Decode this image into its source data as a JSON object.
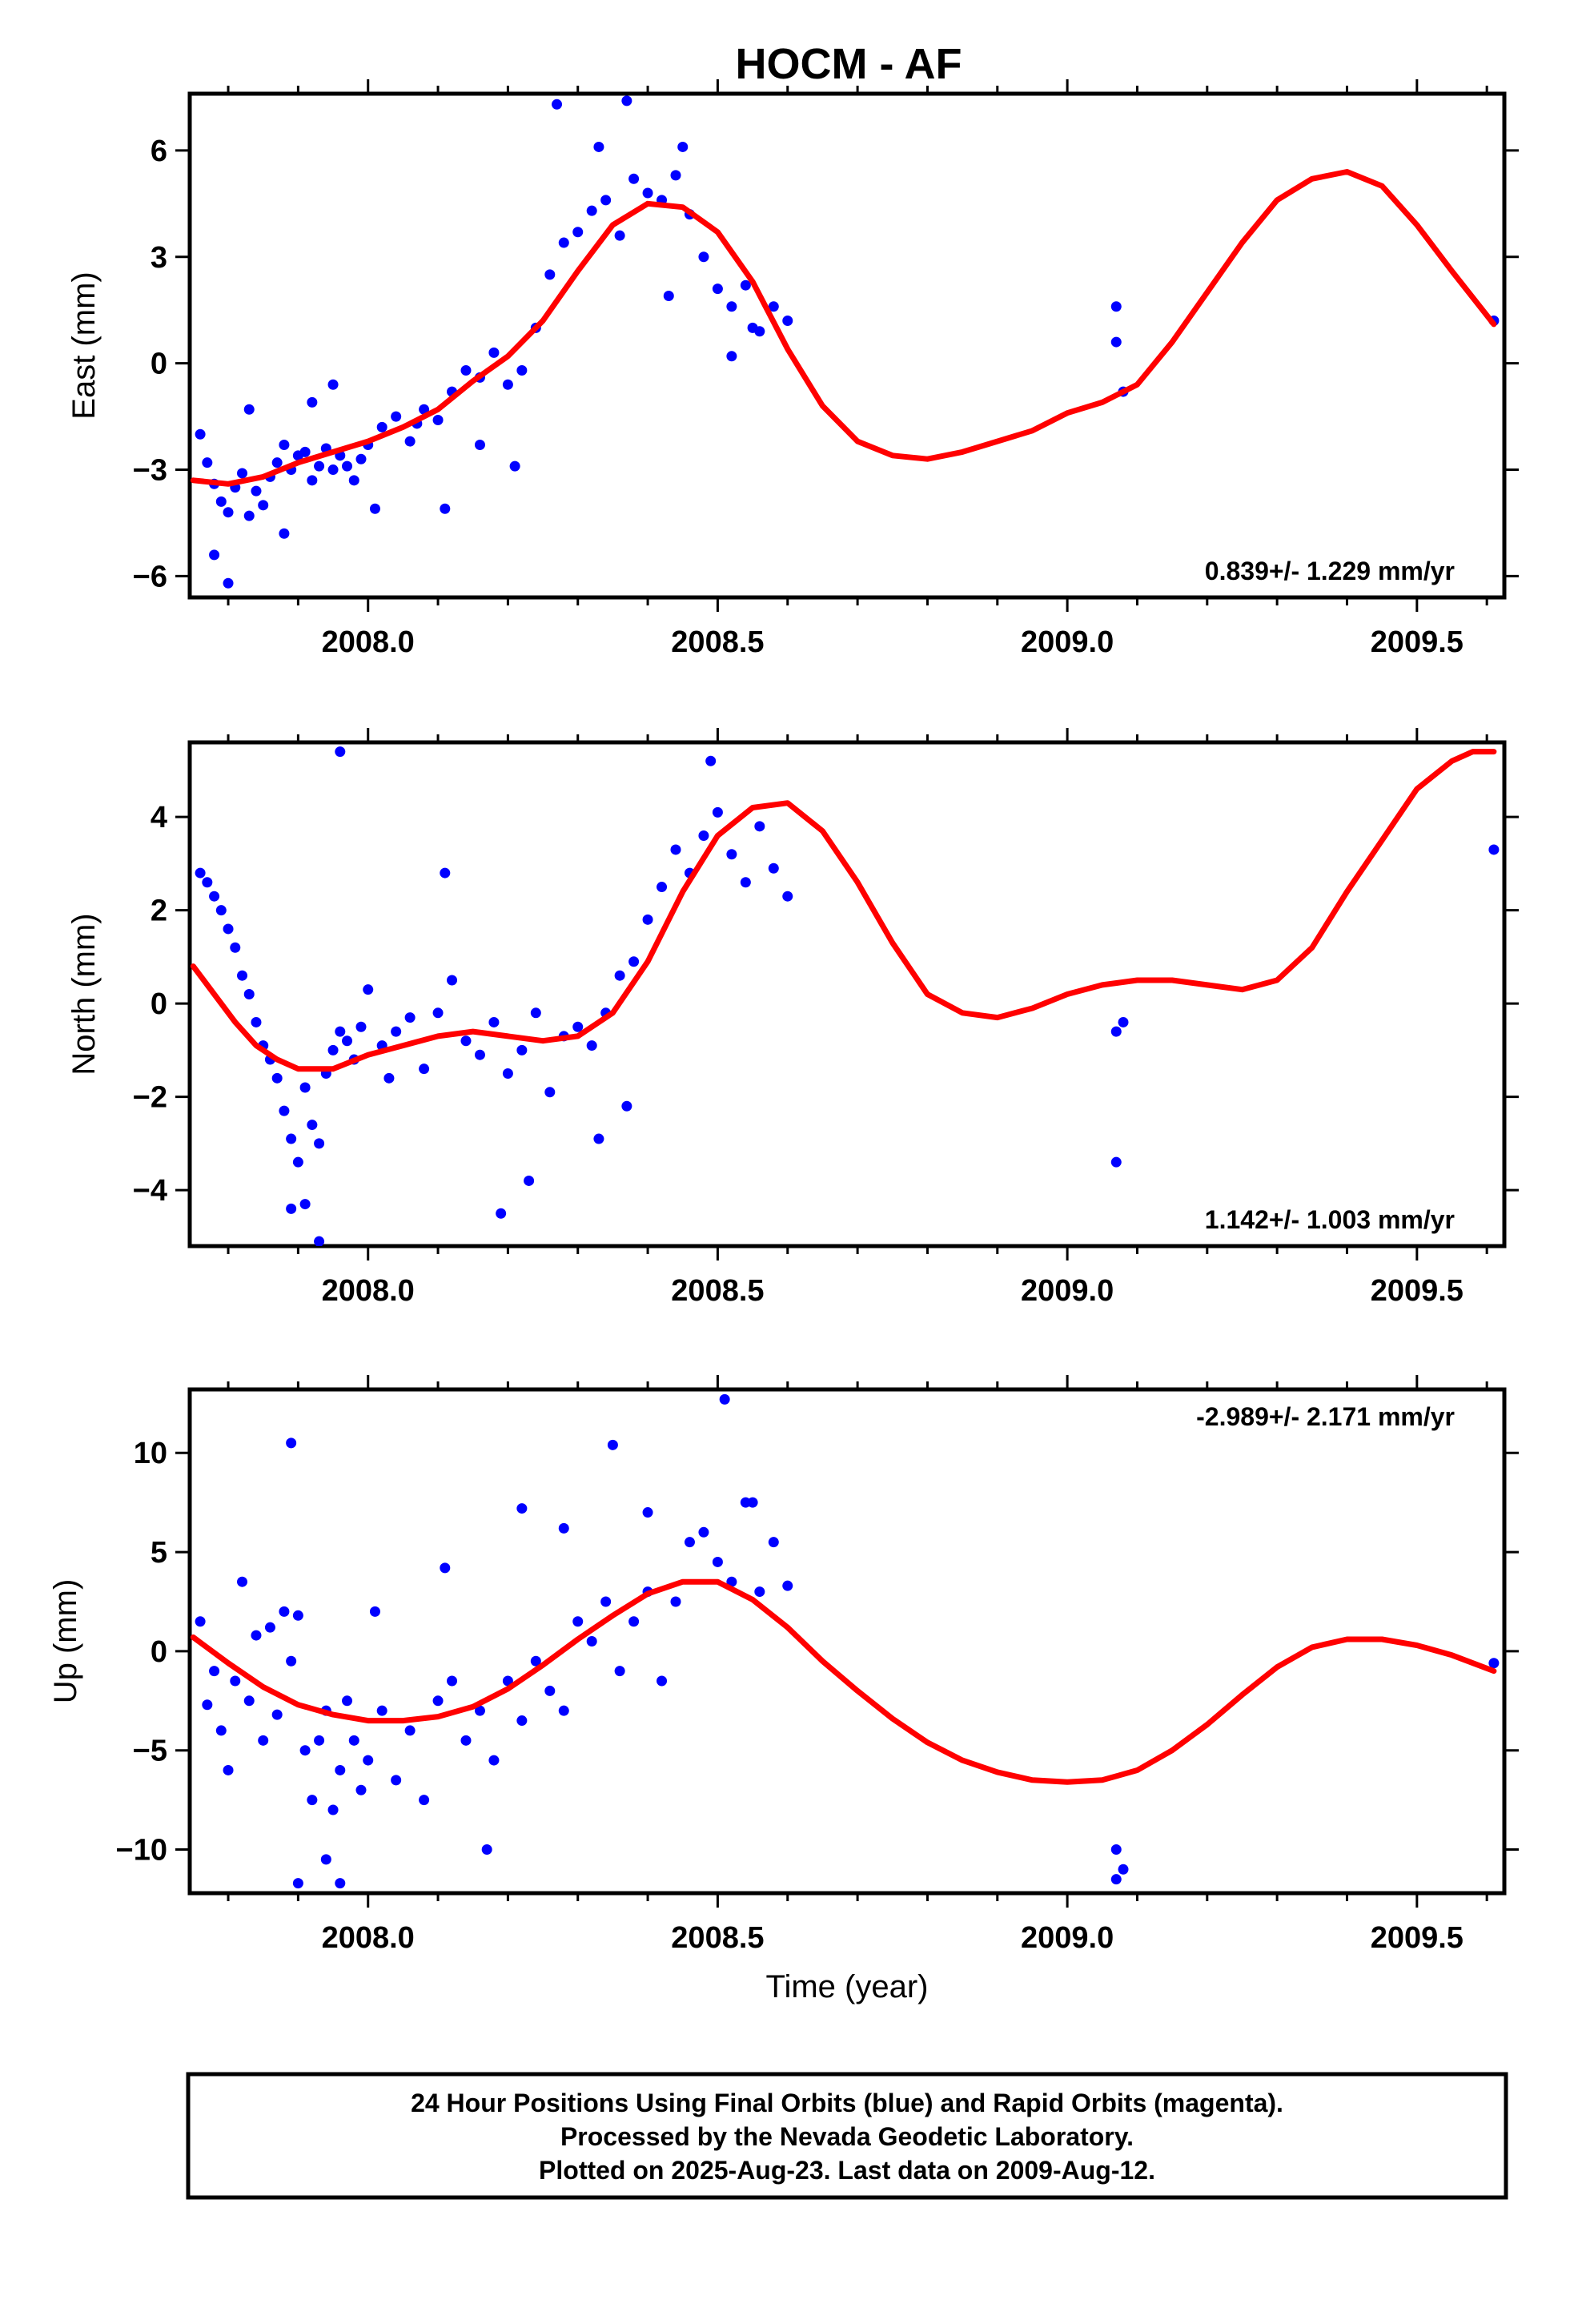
{
  "page": {
    "title": "HOCM - AF",
    "footer_lines": [
      "24 Hour Positions Using Final Orbits (blue) and Rapid Orbits (magenta).",
      "Processed by the Nevada Geodetic Laboratory.",
      "Plotted on 2025-Aug-23. Last data on 2009-Aug-12."
    ]
  },
  "colors": {
    "points": "#0000ff",
    "model": "#ff0000",
    "axes": "#000000"
  },
  "chart_data": [
    {
      "type": "scatter",
      "title": "HOCM - AF",
      "xlabel": "",
      "ylabel": "East (mm)",
      "xlim": [
        2007.745,
        2009.625
      ],
      "ylim": [
        -6.6,
        7.6
      ],
      "xticks": [
        2008.0,
        2008.5,
        2009.0,
        2009.5
      ],
      "xtick_labels": [
        "2008.0",
        "2008.5",
        "2009.0",
        "2009.5"
      ],
      "yticks": [
        -6,
        -3,
        0,
        3,
        6
      ],
      "ytick_labels": [
        "−6",
        "−3",
        "0",
        "3",
        "6"
      ],
      "rate_label": "0.839+/- 1.229 mm/yr",
      "rate_position": "bottom-right",
      "grid": false,
      "series": [
        {
          "kind": "points",
          "x": [
            2007.76,
            2007.77,
            2007.78,
            2007.79,
            2007.8,
            2007.81,
            2007.82,
            2007.83,
            2007.84,
            2007.85,
            2007.86,
            2007.87,
            2007.88,
            2007.89,
            2007.9,
            2007.91,
            2007.92,
            2007.93,
            2007.94,
            2007.95,
            2007.96,
            2007.97,
            2007.98,
            2007.99,
            2008.0,
            2008.02,
            2008.04,
            2008.06,
            2008.08,
            2008.1,
            2008.12,
            2008.14,
            2008.16,
            2008.18,
            2008.2,
            2008.22,
            2008.24,
            2008.26,
            2008.28,
            2008.3,
            2008.32,
            2008.34,
            2008.36,
            2008.38,
            2008.4,
            2008.42,
            2008.44,
            2008.46,
            2008.48,
            2008.5,
            2008.52,
            2008.54,
            2008.56,
            2008.58,
            2008.6,
            2007.78,
            2007.8,
            2007.83,
            2007.88,
            2007.92,
            2007.95,
            2008.01,
            2008.07,
            2008.11,
            2008.16,
            2008.21,
            2008.27,
            2008.33,
            2008.37,
            2008.43,
            2008.45,
            2008.52,
            2008.55,
            2009.07,
            2009.07,
            2009.08,
            2009.61
          ],
          "y": [
            -2.0,
            -2.8,
            -3.4,
            -3.9,
            -4.2,
            -3.5,
            -3.1,
            -4.3,
            -3.6,
            -4.0,
            -3.2,
            -2.8,
            -2.3,
            -3.0,
            -2.6,
            -2.5,
            -3.3,
            -2.9,
            -2.4,
            -3.0,
            -2.6,
            -2.9,
            -3.3,
            -2.7,
            -2.3,
            -1.8,
            -1.5,
            -2.2,
            -1.3,
            -1.6,
            -0.8,
            -0.2,
            -0.4,
            0.3,
            -0.6,
            -0.2,
            1.0,
            2.5,
            3.4,
            3.7,
            4.3,
            4.6,
            3.6,
            5.2,
            4.8,
            4.6,
            5.3,
            4.2,
            3.0,
            2.1,
            1.6,
            2.2,
            0.9,
            1.6,
            1.2,
            -5.4,
            -6.2,
            -1.3,
            -4.8,
            -1.1,
            -0.6,
            -4.1,
            -1.7,
            -4.1,
            -2.3,
            -2.9,
            7.3,
            6.1,
            7.4,
            1.9,
            6.1,
            0.2,
            1.0,
            0.6,
            1.6,
            -0.8,
            1.2
          ]
        },
        {
          "kind": "model",
          "x": [
            2007.75,
            2007.8,
            2007.85,
            2007.9,
            2007.95,
            2008.0,
            2008.05,
            2008.1,
            2008.15,
            2008.2,
            2008.25,
            2008.3,
            2008.35,
            2008.4,
            2008.45,
            2008.5,
            2008.55,
            2008.6,
            2008.65,
            2008.7,
            2008.75,
            2008.8,
            2008.85,
            2008.9,
            2008.95,
            2009.0,
            2009.05,
            2009.1,
            2009.15,
            2009.2,
            2009.25,
            2009.3,
            2009.35,
            2009.4,
            2009.45,
            2009.5,
            2009.55,
            2009.61
          ],
          "y": [
            -3.3,
            -3.4,
            -3.2,
            -2.8,
            -2.5,
            -2.2,
            -1.8,
            -1.3,
            -0.5,
            0.2,
            1.2,
            2.6,
            3.9,
            4.5,
            4.4,
            3.7,
            2.3,
            0.4,
            -1.2,
            -2.2,
            -2.6,
            -2.7,
            -2.5,
            -2.2,
            -1.9,
            -1.4,
            -1.1,
            -0.6,
            0.6,
            2.0,
            3.4,
            4.6,
            5.2,
            5.4,
            5.0,
            3.9,
            2.6,
            1.1
          ]
        }
      ]
    },
    {
      "type": "scatter",
      "xlabel": "",
      "ylabel": "North (mm)",
      "xlim": [
        2007.745,
        2009.625
      ],
      "ylim": [
        -5.2,
        5.6
      ],
      "xticks": [
        2008.0,
        2008.5,
        2009.0,
        2009.5
      ],
      "xtick_labels": [
        "2008.0",
        "2008.5",
        "2009.0",
        "2009.5"
      ],
      "yticks": [
        -4,
        -2,
        0,
        2,
        4
      ],
      "ytick_labels": [
        "−4",
        "−2",
        "0",
        "2",
        "4"
      ],
      "rate_label": "1.142+/- 1.003 mm/yr",
      "rate_position": "bottom-right",
      "grid": false,
      "series": [
        {
          "kind": "points",
          "x": [
            2007.76,
            2007.77,
            2007.78,
            2007.79,
            2007.8,
            2007.81,
            2007.82,
            2007.83,
            2007.84,
            2007.85,
            2007.86,
            2007.87,
            2007.88,
            2007.89,
            2007.9,
            2007.91,
            2007.92,
            2007.93,
            2007.94,
            2007.95,
            2007.96,
            2007.97,
            2007.98,
            2007.99,
            2008.0,
            2008.02,
            2008.04,
            2008.06,
            2008.08,
            2008.1,
            2008.12,
            2008.14,
            2008.16,
            2008.18,
            2008.2,
            2008.22,
            2008.24,
            2008.26,
            2008.28,
            2008.3,
            2008.32,
            2008.34,
            2008.36,
            2008.38,
            2008.4,
            2008.42,
            2008.44,
            2008.46,
            2008.48,
            2008.5,
            2008.52,
            2008.54,
            2008.56,
            2008.58,
            2008.6,
            2007.89,
            2007.91,
            2007.93,
            2007.96,
            2008.03,
            2008.11,
            2008.19,
            2008.23,
            2008.33,
            2008.37,
            2008.49,
            2009.07,
            2009.07,
            2009.08,
            2009.61
          ],
          "y": [
            2.8,
            2.6,
            2.3,
            2.0,
            1.6,
            1.2,
            0.6,
            0.2,
            -0.4,
            -0.9,
            -1.2,
            -1.6,
            -2.3,
            -2.9,
            -3.4,
            -1.8,
            -2.6,
            -3.0,
            -1.5,
            -1.0,
            -0.6,
            -0.8,
            -1.2,
            -0.5,
            0.3,
            -0.9,
            -0.6,
            -0.3,
            -1.4,
            -0.2,
            0.5,
            -0.8,
            -1.1,
            -0.4,
            -1.5,
            -1.0,
            -0.2,
            -1.9,
            -0.7,
            -0.5,
            -0.9,
            -0.2,
            0.6,
            0.9,
            1.8,
            2.5,
            3.3,
            2.8,
            3.6,
            4.1,
            3.2,
            2.6,
            3.8,
            2.9,
            2.3,
            -4.4,
            -4.3,
            -5.1,
            5.4,
            -1.6,
            2.8,
            -4.5,
            -3.8,
            -2.9,
            -2.2,
            5.2,
            -3.4,
            -0.6,
            -0.4,
            3.3
          ]
        },
        {
          "kind": "model",
          "x": [
            2007.75,
            2007.78,
            2007.81,
            2007.84,
            2007.87,
            2007.9,
            2007.95,
            2008.0,
            2008.05,
            2008.1,
            2008.15,
            2008.2,
            2008.25,
            2008.3,
            2008.35,
            2008.4,
            2008.45,
            2008.5,
            2008.55,
            2008.6,
            2008.65,
            2008.7,
            2008.75,
            2008.8,
            2008.85,
            2008.9,
            2008.95,
            2009.0,
            2009.05,
            2009.1,
            2009.15,
            2009.2,
            2009.25,
            2009.3,
            2009.35,
            2009.4,
            2009.45,
            2009.5,
            2009.55,
            2009.58,
            2009.61
          ],
          "y": [
            0.8,
            0.2,
            -0.4,
            -0.9,
            -1.2,
            -1.4,
            -1.4,
            -1.1,
            -0.9,
            -0.7,
            -0.6,
            -0.7,
            -0.8,
            -0.7,
            -0.2,
            0.9,
            2.4,
            3.6,
            4.2,
            4.3,
            3.7,
            2.6,
            1.3,
            0.2,
            -0.2,
            -0.3,
            -0.1,
            0.2,
            0.4,
            0.5,
            0.5,
            0.4,
            0.3,
            0.5,
            1.2,
            2.4,
            3.5,
            4.6,
            5.2,
            5.4,
            5.4
          ]
        }
      ]
    },
    {
      "type": "scatter",
      "xlabel": "Time (year)",
      "ylabel": "Up (mm)",
      "xlim": [
        2007.745,
        2009.625
      ],
      "ylim": [
        -12.2,
        13.2
      ],
      "xticks": [
        2008.0,
        2008.5,
        2009.0,
        2009.5
      ],
      "xtick_labels": [
        "2008.0",
        "2008.5",
        "2009.0",
        "2009.5"
      ],
      "yticks": [
        -10,
        -5,
        0,
        5,
        10
      ],
      "ytick_labels": [
        "−10",
        "−5",
        "0",
        "5",
        "10"
      ],
      "rate_label": "-2.989+/- 2.171 mm/yr",
      "rate_position": "top-right",
      "grid": false,
      "series": [
        {
          "kind": "points",
          "x": [
            2007.76,
            2007.77,
            2007.78,
            2007.79,
            2007.8,
            2007.81,
            2007.82,
            2007.83,
            2007.84,
            2007.85,
            2007.86,
            2007.87,
            2007.88,
            2007.89,
            2007.9,
            2007.91,
            2007.92,
            2007.93,
            2007.94,
            2007.95,
            2007.96,
            2007.97,
            2007.98,
            2007.99,
            2008.0,
            2008.02,
            2008.04,
            2008.06,
            2008.08,
            2008.1,
            2008.12,
            2008.14,
            2008.16,
            2008.18,
            2008.2,
            2008.22,
            2008.24,
            2008.26,
            2008.28,
            2008.3,
            2008.32,
            2008.34,
            2008.36,
            2008.38,
            2008.4,
            2008.42,
            2008.44,
            2008.46,
            2008.48,
            2008.5,
            2008.52,
            2008.54,
            2008.56,
            2008.58,
            2008.6,
            2007.89,
            2007.9,
            2007.94,
            2007.96,
            2008.01,
            2008.11,
            2008.17,
            2008.22,
            2008.28,
            2008.35,
            2008.4,
            2008.51,
            2008.55,
            2009.07,
            2009.07,
            2009.08,
            2009.61
          ],
          "y": [
            1.5,
            -2.7,
            -1.0,
            -4.0,
            -6.0,
            -1.5,
            3.5,
            -2.5,
            0.8,
            -4.5,
            1.2,
            -3.2,
            2.0,
            -0.5,
            1.8,
            -5.0,
            -7.5,
            -4.5,
            -3.0,
            -8.0,
            -6.0,
            -2.5,
            -4.5,
            -7.0,
            -5.5,
            -3.0,
            -6.5,
            -4.0,
            -7.5,
            -2.5,
            -1.5,
            -4.5,
            -3.0,
            -5.5,
            -1.5,
            -3.5,
            -0.5,
            -2.0,
            -3.0,
            1.5,
            0.5,
            2.5,
            -1.0,
            1.5,
            3.0,
            -1.5,
            2.5,
            5.5,
            6.0,
            4.5,
            3.5,
            7.5,
            3.0,
            5.5,
            3.3,
            10.5,
            -11.7,
            -10.5,
            -11.7,
            2.0,
            4.2,
            -10.0,
            7.2,
            6.2,
            10.4,
            7.0,
            12.7,
            7.5,
            -10.0,
            -11.5,
            -11.0,
            -0.6
          ]
        },
        {
          "kind": "model",
          "x": [
            2007.75,
            2007.8,
            2007.85,
            2007.9,
            2007.95,
            2008.0,
            2008.05,
            2008.1,
            2008.15,
            2008.2,
            2008.25,
            2008.3,
            2008.35,
            2008.4,
            2008.45,
            2008.5,
            2008.55,
            2008.6,
            2008.65,
            2008.7,
            2008.75,
            2008.8,
            2008.85,
            2008.9,
            2008.95,
            2009.0,
            2009.05,
            2009.1,
            2009.15,
            2009.2,
            2009.25,
            2009.3,
            2009.35,
            2009.4,
            2009.45,
            2009.5,
            2009.55,
            2009.61
          ],
          "y": [
            0.7,
            -0.6,
            -1.8,
            -2.7,
            -3.2,
            -3.5,
            -3.5,
            -3.3,
            -2.8,
            -1.9,
            -0.7,
            0.6,
            1.8,
            2.9,
            3.5,
            3.5,
            2.6,
            1.2,
            -0.5,
            -2.0,
            -3.4,
            -4.6,
            -5.5,
            -6.1,
            -6.5,
            -6.6,
            -6.5,
            -6.0,
            -5.0,
            -3.7,
            -2.2,
            -0.8,
            0.2,
            0.6,
            0.6,
            0.3,
            -0.2,
            -1.0
          ]
        }
      ]
    }
  ]
}
